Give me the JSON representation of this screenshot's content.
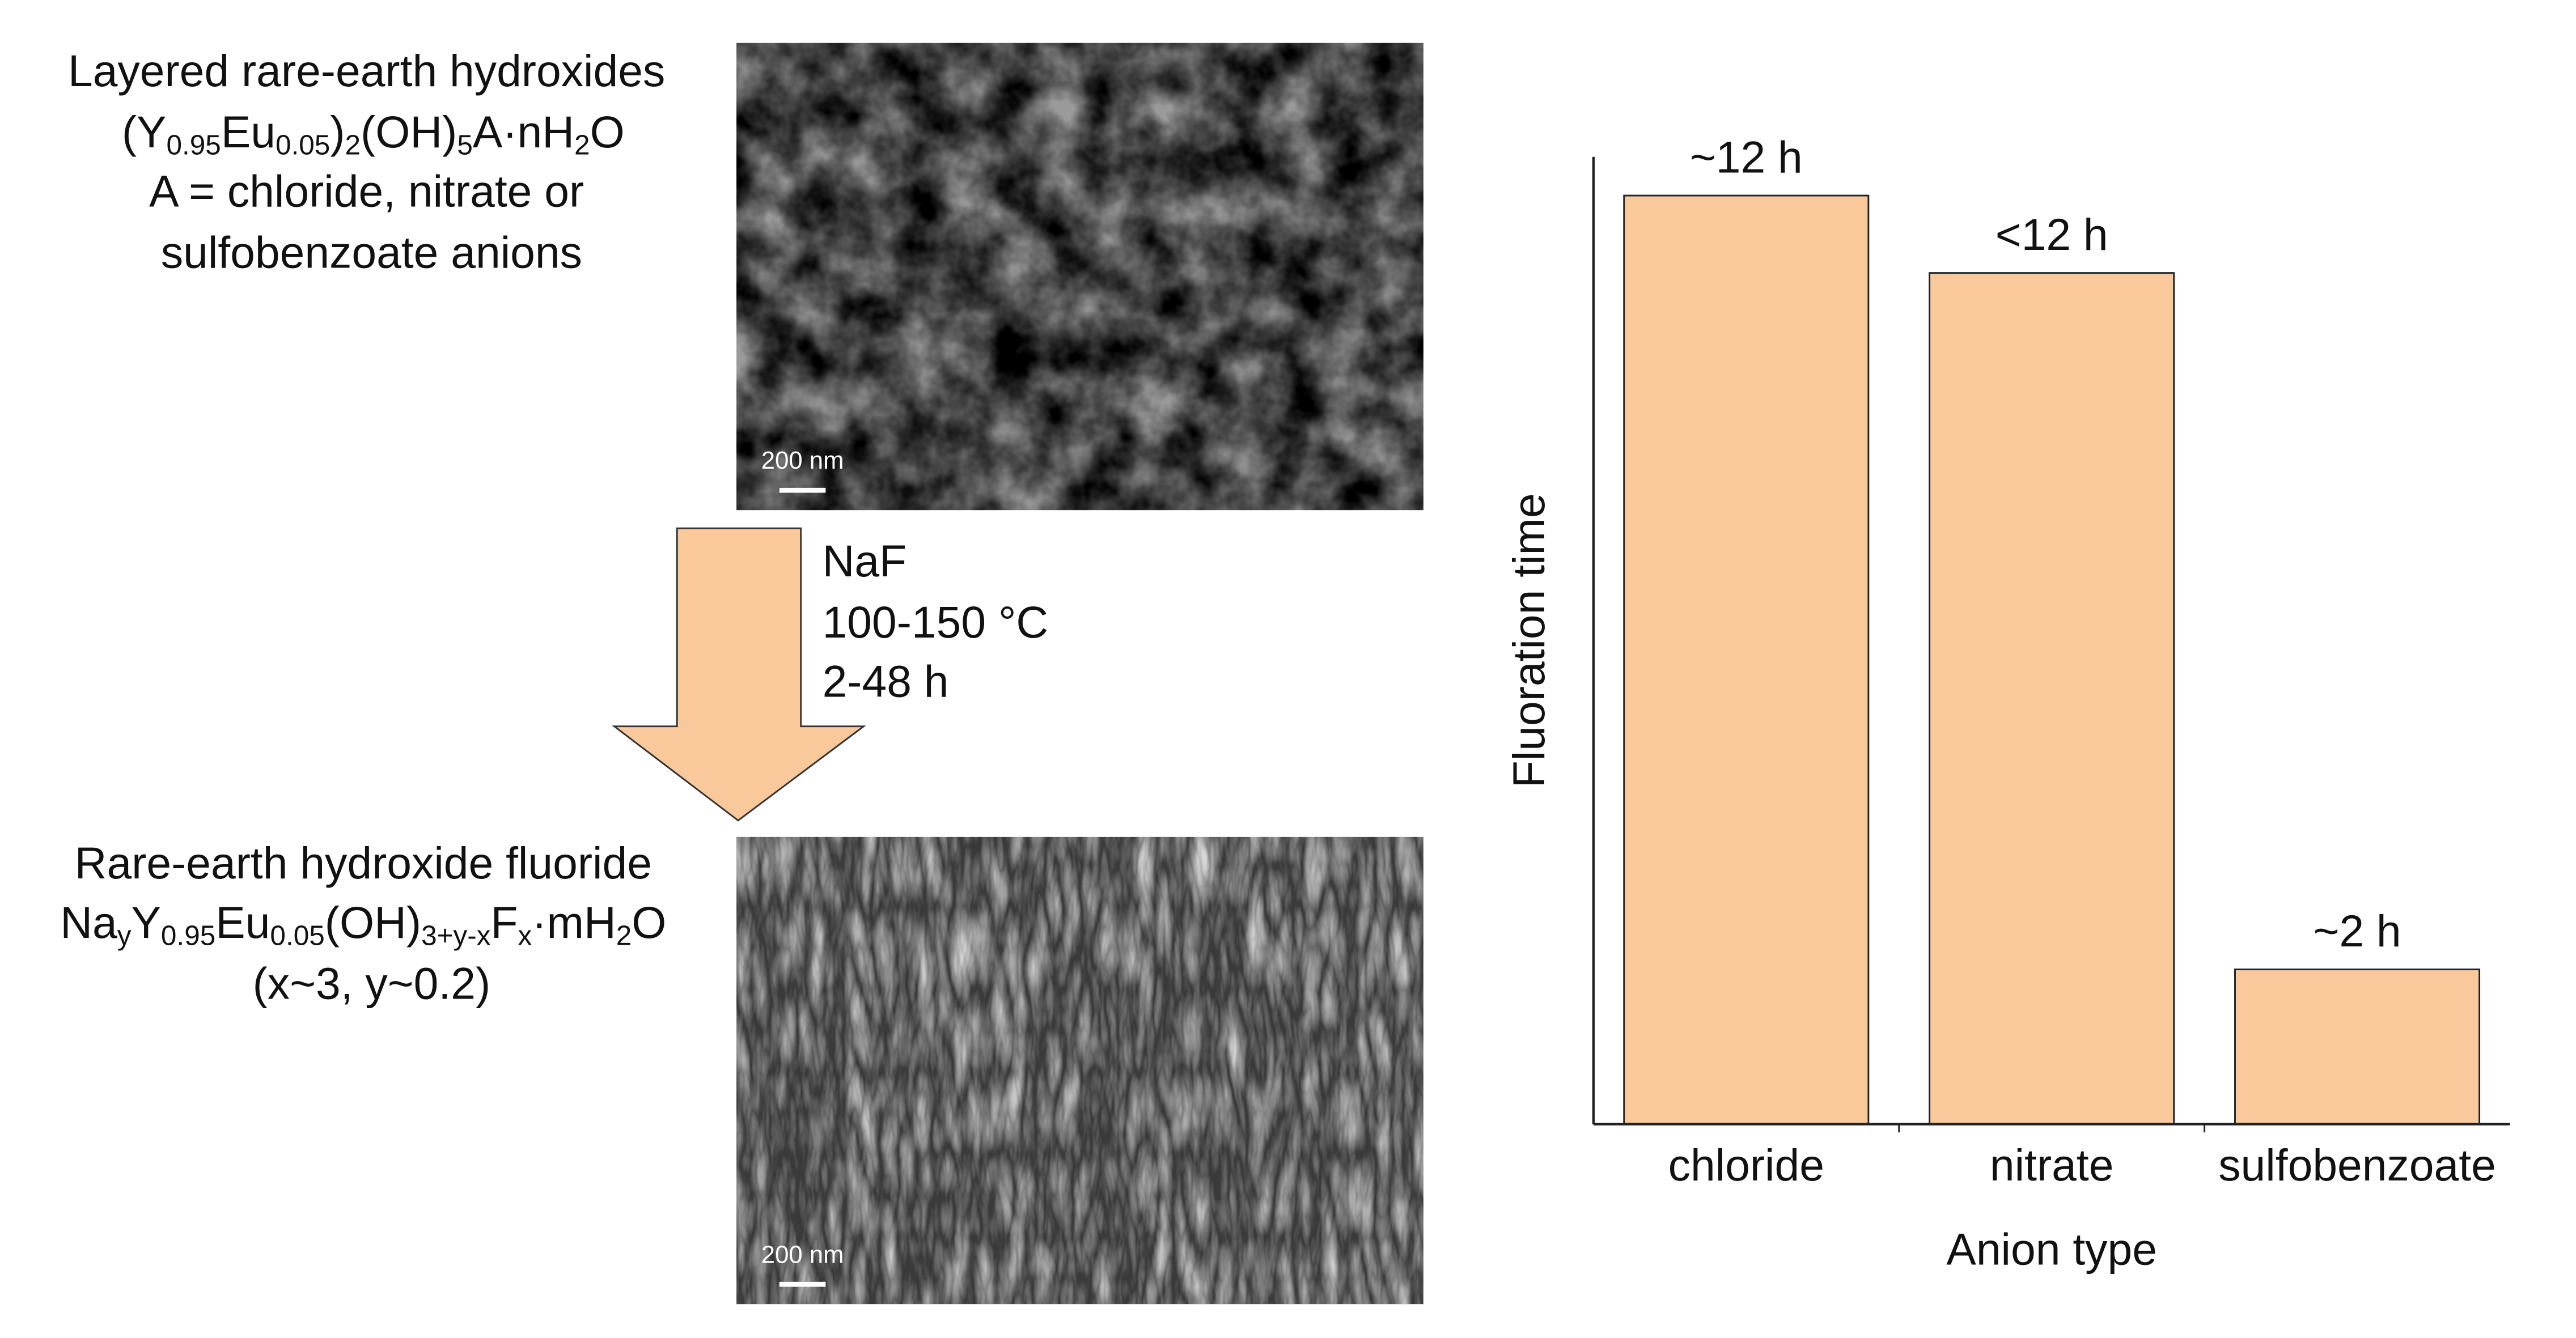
{
  "scheme": {
    "precursor": {
      "name": "Layered rare-earth hydroxides",
      "formula": [
        {
          "text": "(Y"
        },
        {
          "text": "0.95",
          "sub": true
        },
        {
          "text": "Eu"
        },
        {
          "text": "0.05",
          "sub": true
        },
        {
          "text": ")"
        },
        {
          "text": "2",
          "sub": true
        },
        {
          "text": "(OH)"
        },
        {
          "text": "5",
          "sub": true
        },
        {
          "text": "A·nH"
        },
        {
          "text": "2",
          "sub": true
        },
        {
          "text": "O"
        }
      ],
      "anion_note": [
        "A = chloride, nitrate or",
        "sulfobenzoate anions"
      ],
      "scale_bar": "200 nm"
    },
    "conditions": [
      "NaF",
      "100-150 °C",
      "2-48 h"
    ],
    "product": {
      "name": "Rare-earth hydroxide fluoride",
      "formula": [
        {
          "text": "Na"
        },
        {
          "text": "y",
          "sub": true
        },
        {
          "text": "Y"
        },
        {
          "text": "0.95",
          "sub": true
        },
        {
          "text": "Eu"
        },
        {
          "text": "0.05",
          "sub": true
        },
        {
          "text": "(OH)"
        },
        {
          "text": "3+y-x",
          "sub": true
        },
        {
          "text": "F"
        },
        {
          "text": "x",
          "sub": true
        },
        {
          "text": "·mH"
        },
        {
          "text": "2",
          "sub": true
        },
        {
          "text": "O"
        }
      ],
      "composition": "(x~3, y~0.2)",
      "scale_bar": "200 nm"
    }
  },
  "chart_data": {
    "type": "bar",
    "categories": [
      "chloride",
      "nitrate",
      "sulfobenzoate"
    ],
    "values": [
      12,
      11,
      2
    ],
    "value_labels": [
      "~12 h",
      "<12 h",
      "~2 h"
    ],
    "color": "#f9c89b",
    "xlabel": "Anion type",
    "ylabel": "Fluoration time",
    "ylim": [
      0,
      12.5
    ]
  }
}
